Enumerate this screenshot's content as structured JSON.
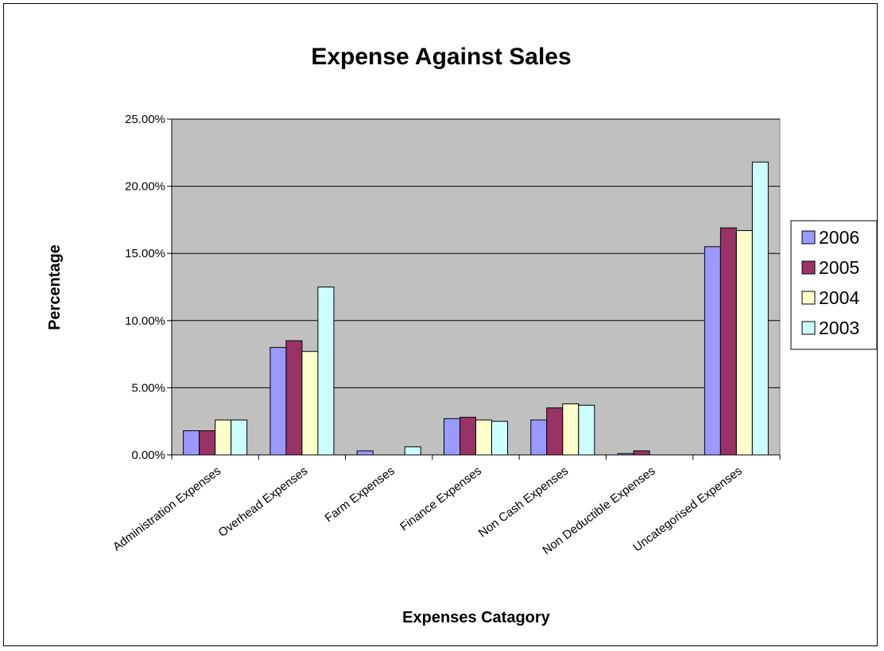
{
  "chart_data": {
    "type": "bar",
    "title": "Expense Against Sales",
    "xlabel": "Expenses Catagory",
    "ylabel": "Percentage",
    "ylim": [
      0,
      25
    ],
    "yticks": [
      0,
      5,
      10,
      15,
      20,
      25
    ],
    "ytick_labels": [
      "0.00%",
      "5.00%",
      "10.00%",
      "15.00%",
      "20.00%",
      "25.00%"
    ],
    "grid": true,
    "legend_position": "right",
    "categories": [
      "Administration Expenses",
      "Overhead Expenses",
      "Farm Expenses",
      "Finance Expenses",
      "Non Cash Expenses",
      "Non Deductible Expenses",
      "Uncategorised Expenses"
    ],
    "series": [
      {
        "name": "2006",
        "color": "#9999ff",
        "values": [
          1.8,
          8.0,
          0.3,
          2.7,
          2.6,
          0.1,
          15.5
        ]
      },
      {
        "name": "2005",
        "color": "#993366",
        "values": [
          1.8,
          8.5,
          0,
          2.8,
          3.5,
          0.3,
          16.9
        ]
      },
      {
        "name": "2004",
        "color": "#ffffcc",
        "values": [
          2.6,
          7.7,
          0,
          2.6,
          3.8,
          0,
          16.7
        ]
      },
      {
        "name": "2003",
        "color": "#ccffff",
        "values": [
          2.6,
          12.5,
          0.6,
          2.5,
          3.7,
          0,
          21.8
        ]
      }
    ],
    "plot_background": "#c0c0c0"
  }
}
